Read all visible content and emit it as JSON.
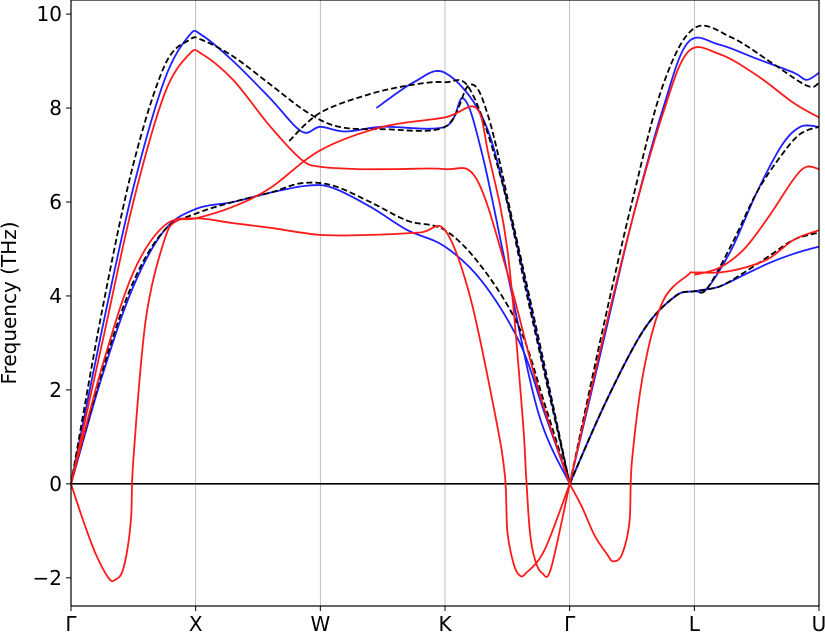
{
  "chart_data": {
    "type": "line",
    "title": "",
    "xlabel": "",
    "ylabel": "Frequency (THz)",
    "ylim": [
      -2.6,
      10.3
    ],
    "yticks": [
      -2,
      0,
      2,
      4,
      6,
      8,
      10
    ],
    "ytick_labels": [
      "−2",
      "0",
      "2",
      "4",
      "6",
      "8",
      "10"
    ],
    "x_range": [
      0,
      6
    ],
    "high_symmetry_points": [
      {
        "x": 0,
        "label": "Γ"
      },
      {
        "x": 1,
        "label": "X"
      },
      {
        "x": 2,
        "label": "W"
      },
      {
        "x": 3,
        "label": "K"
      },
      {
        "x": 4,
        "label": "Γ"
      },
      {
        "x": 5,
        "label": "L"
      },
      {
        "x": 6,
        "label": "U"
      }
    ],
    "grid": "vertical lines at high-symmetry points",
    "zero_line": true,
    "series": [
      {
        "color": "#1f1fff",
        "dash": "solid",
        "branches": [
          [
            [
              0,
              0
            ],
            [
              0.25,
              3.3
            ],
            [
              0.5,
              6.3
            ],
            [
              0.75,
              8.6
            ],
            [
              0.95,
              9.55
            ],
            [
              1.05,
              9.55
            ],
            [
              1.3,
              9.0
            ],
            [
              1.6,
              8.2
            ],
            [
              1.85,
              7.5
            ],
            [
              2,
              7.6
            ],
            [
              2.2,
              7.5
            ],
            [
              2.5,
              7.6
            ],
            [
              3,
              7.6
            ],
            [
              3.15,
              8.2
            ],
            [
              3.3,
              7.0
            ],
            [
              3.5,
              4.5
            ],
            [
              3.75,
              1.5
            ],
            [
              4,
              0
            ]
          ],
          [
            [
              0,
              0
            ],
            [
              0.25,
              2.3
            ],
            [
              0.5,
              4.2
            ],
            [
              0.75,
              5.4
            ],
            [
              1,
              5.85
            ],
            [
              1.3,
              6.0
            ],
            [
              1.6,
              6.2
            ],
            [
              1.9,
              6.35
            ],
            [
              2.1,
              6.3
            ],
            [
              2.4,
              5.9
            ],
            [
              2.7,
              5.4
            ],
            [
              3,
              5.05
            ],
            [
              3.3,
              4.3
            ],
            [
              3.6,
              3.0
            ],
            [
              3.8,
              1.5
            ],
            [
              4,
              0
            ]
          ],
          [
            [
              2.45,
              8.0
            ],
            [
              2.75,
              8.55
            ],
            [
              3,
              8.75
            ],
            [
              3.3,
              7.8
            ],
            [
              3.5,
              6.0
            ],
            [
              3.75,
              3.0
            ],
            [
              4,
              0
            ]
          ],
          [
            [
              4,
              0
            ],
            [
              4.25,
              2.8
            ],
            [
              4.5,
              5.6
            ],
            [
              4.75,
              8.0
            ],
            [
              4.95,
              9.4
            ],
            [
              5.2,
              9.35
            ],
            [
              5.5,
              9.05
            ],
            [
              5.8,
              8.75
            ],
            [
              5.9,
              8.6
            ],
            [
              6,
              8.75
            ]
          ],
          [
            [
              4,
              0
            ],
            [
              4.3,
              1.8
            ],
            [
              4.6,
              3.3
            ],
            [
              4.85,
              4.0
            ],
            [
              5,
              4.1
            ],
            [
              5.2,
              4.2
            ],
            [
              5.4,
              4.45
            ],
            [
              5.6,
              4.7
            ],
            [
              5.8,
              4.9
            ],
            [
              6,
              5.05
            ]
          ],
          [
            [
              4,
              0
            ],
            [
              4.3,
              1.8
            ],
            [
              4.6,
              3.3
            ],
            [
              4.85,
              4.0
            ],
            [
              5,
              4.1
            ],
            [
              5.1,
              4.15
            ],
            [
              5.3,
              5.0
            ],
            [
              5.5,
              6.2
            ],
            [
              5.7,
              7.2
            ],
            [
              5.85,
              7.6
            ],
            [
              6,
              7.6
            ]
          ]
        ]
      },
      {
        "color": "#000000",
        "dash": "dashed",
        "branches": [
          [
            [
              0,
              0
            ],
            [
              0.25,
              3.7
            ],
            [
              0.5,
              6.8
            ],
            [
              0.75,
              8.9
            ],
            [
              0.95,
              9.45
            ],
            [
              1.05,
              9.45
            ],
            [
              1.3,
              9.1
            ],
            [
              1.6,
              8.5
            ],
            [
              1.9,
              7.9
            ],
            [
              2.15,
              7.6
            ],
            [
              2.5,
              7.55
            ],
            [
              3,
              7.6
            ],
            [
              3.2,
              8.5
            ],
            [
              3.35,
              7.8
            ],
            [
              3.55,
              5.5
            ],
            [
              3.8,
              2.5
            ],
            [
              4,
              0
            ]
          ],
          [
            [
              0,
              0
            ],
            [
              0.25,
              2.4
            ],
            [
              0.5,
              4.3
            ],
            [
              0.75,
              5.4
            ],
            [
              1,
              5.75
            ],
            [
              1.3,
              6.0
            ],
            [
              1.6,
              6.2
            ],
            [
              1.85,
              6.4
            ],
            [
              2.1,
              6.35
            ],
            [
              2.4,
              6.0
            ],
            [
              2.7,
              5.6
            ],
            [
              3,
              5.4
            ],
            [
              3.3,
              4.6
            ],
            [
              3.6,
              3.3
            ],
            [
              3.8,
              1.7
            ],
            [
              4,
              0
            ]
          ],
          [
            [
              1.75,
              7.3
            ],
            [
              2,
              7.9
            ],
            [
              2.4,
              8.3
            ],
            [
              2.75,
              8.5
            ],
            [
              3,
              8.55
            ],
            [
              3.2,
              8.4
            ],
            [
              3.45,
              6.5
            ],
            [
              3.7,
              3.5
            ],
            [
              4,
              0
            ]
          ],
          [
            [
              4,
              0
            ],
            [
              4.25,
              3.1
            ],
            [
              4.5,
              6.0
            ],
            [
              4.75,
              8.5
            ],
            [
              5,
              9.7
            ],
            [
              5.3,
              9.5
            ],
            [
              5.6,
              9.0
            ],
            [
              5.85,
              8.55
            ],
            [
              5.95,
              8.45
            ],
            [
              6,
              8.55
            ]
          ],
          [
            [
              4,
              0
            ],
            [
              4.3,
              1.8
            ],
            [
              4.6,
              3.3
            ],
            [
              4.85,
              4.0
            ],
            [
              5,
              4.1
            ],
            [
              5.2,
              4.2
            ],
            [
              5.4,
              4.5
            ],
            [
              5.6,
              4.85
            ],
            [
              5.8,
              5.2
            ],
            [
              6,
              5.35
            ]
          ],
          [
            [
              4,
              0
            ],
            [
              4.3,
              1.8
            ],
            [
              4.6,
              3.3
            ],
            [
              4.85,
              4.0
            ],
            [
              5,
              4.1
            ],
            [
              5.1,
              4.15
            ],
            [
              5.3,
              5.1
            ],
            [
              5.5,
              6.2
            ],
            [
              5.7,
              7.0
            ],
            [
              5.85,
              7.45
            ],
            [
              6,
              7.6
            ]
          ]
        ]
      },
      {
        "color": "#ff1a1a",
        "dash": "solid",
        "branches": [
          [
            [
              0,
              0
            ],
            [
              0.25,
              3.0
            ],
            [
              0.5,
              6.0
            ],
            [
              0.75,
              8.3
            ],
            [
              0.95,
              9.15
            ],
            [
              1.05,
              9.15
            ],
            [
              1.3,
              8.6
            ],
            [
              1.6,
              7.6
            ],
            [
              1.85,
              6.9
            ],
            [
              2,
              6.75
            ],
            [
              2.3,
              6.7
            ],
            [
              2.6,
              6.7
            ],
            [
              3,
              6.7
            ],
            [
              3.25,
              6.5
            ],
            [
              3.5,
              4.5
            ],
            [
              3.75,
              2.0
            ],
            [
              4,
              0
            ]
          ],
          [
            [
              0,
              0
            ],
            [
              0.25,
              2.5
            ],
            [
              0.5,
              4.5
            ],
            [
              0.75,
              5.5
            ],
            [
              1,
              5.65
            ],
            [
              1.3,
              5.55
            ],
            [
              1.6,
              5.45
            ],
            [
              2,
              5.3
            ],
            [
              2.4,
              5.3
            ],
            [
              2.8,
              5.35
            ],
            [
              3,
              5.4
            ],
            [
              3.2,
              4.0
            ],
            [
              3.4,
              1.5
            ],
            [
              3.48,
              0.2
            ],
            [
              3.5,
              -1.0
            ],
            [
              3.55,
              -1.7
            ],
            [
              3.6,
              -1.95
            ],
            [
              3.65,
              -1.9
            ],
            [
              3.8,
              -1.4
            ],
            [
              4,
              0
            ]
          ],
          [
            [
              0,
              0
            ],
            [
              0.1,
              -0.8
            ],
            [
              0.2,
              -1.5
            ],
            [
              0.3,
              -2.0
            ],
            [
              0.35,
              -2.05
            ],
            [
              0.42,
              -1.8
            ],
            [
              0.48,
              -0.8
            ],
            [
              0.5,
              0.5
            ],
            [
              0.6,
              3.5
            ],
            [
              0.75,
              5.2
            ],
            [
              0.85,
              5.6
            ],
            [
              1,
              5.65
            ],
            [
              1.3,
              5.9
            ],
            [
              1.6,
              6.3
            ],
            [
              2,
              7.1
            ],
            [
              2.5,
              7.6
            ],
            [
              3,
              7.8
            ],
            [
              3.25,
              8.0
            ],
            [
              3.35,
              7.0
            ],
            [
              3.5,
              5.0
            ],
            [
              3.62,
              1.5
            ],
            [
              3.65,
              0.2
            ],
            [
              3.68,
              -1.0
            ],
            [
              3.72,
              -1.6
            ],
            [
              3.78,
              -1.9
            ],
            [
              3.85,
              -1.8
            ],
            [
              4,
              0
            ]
          ],
          [
            [
              4,
              0
            ],
            [
              4.1,
              -0.5
            ],
            [
              4.2,
              -1.1
            ],
            [
              4.3,
              -1.5
            ],
            [
              4.35,
              -1.65
            ],
            [
              4.42,
              -1.5
            ],
            [
              4.48,
              -0.8
            ],
            [
              4.5,
              0.5
            ],
            [
              4.6,
              2.5
            ],
            [
              4.75,
              3.9
            ],
            [
              4.95,
              4.45
            ],
            [
              5,
              4.5
            ],
            [
              5.2,
              4.5
            ],
            [
              5.4,
              4.6
            ],
            [
              5.6,
              4.8
            ],
            [
              5.8,
              5.2
            ],
            [
              6,
              5.4
            ]
          ],
          [
            [
              4,
              0
            ],
            [
              4.25,
              2.9
            ],
            [
              4.5,
              5.6
            ],
            [
              4.75,
              7.9
            ],
            [
              4.95,
              9.2
            ],
            [
              5.2,
              9.15
            ],
            [
              5.5,
              8.7
            ],
            [
              5.8,
              8.1
            ],
            [
              6,
              7.8
            ]
          ],
          [
            [
              5,
              4.45
            ],
            [
              5.2,
              4.6
            ],
            [
              5.4,
              5.0
            ],
            [
              5.6,
              5.7
            ],
            [
              5.8,
              6.5
            ],
            [
              5.9,
              6.75
            ],
            [
              6,
              6.7
            ]
          ]
        ]
      }
    ]
  }
}
